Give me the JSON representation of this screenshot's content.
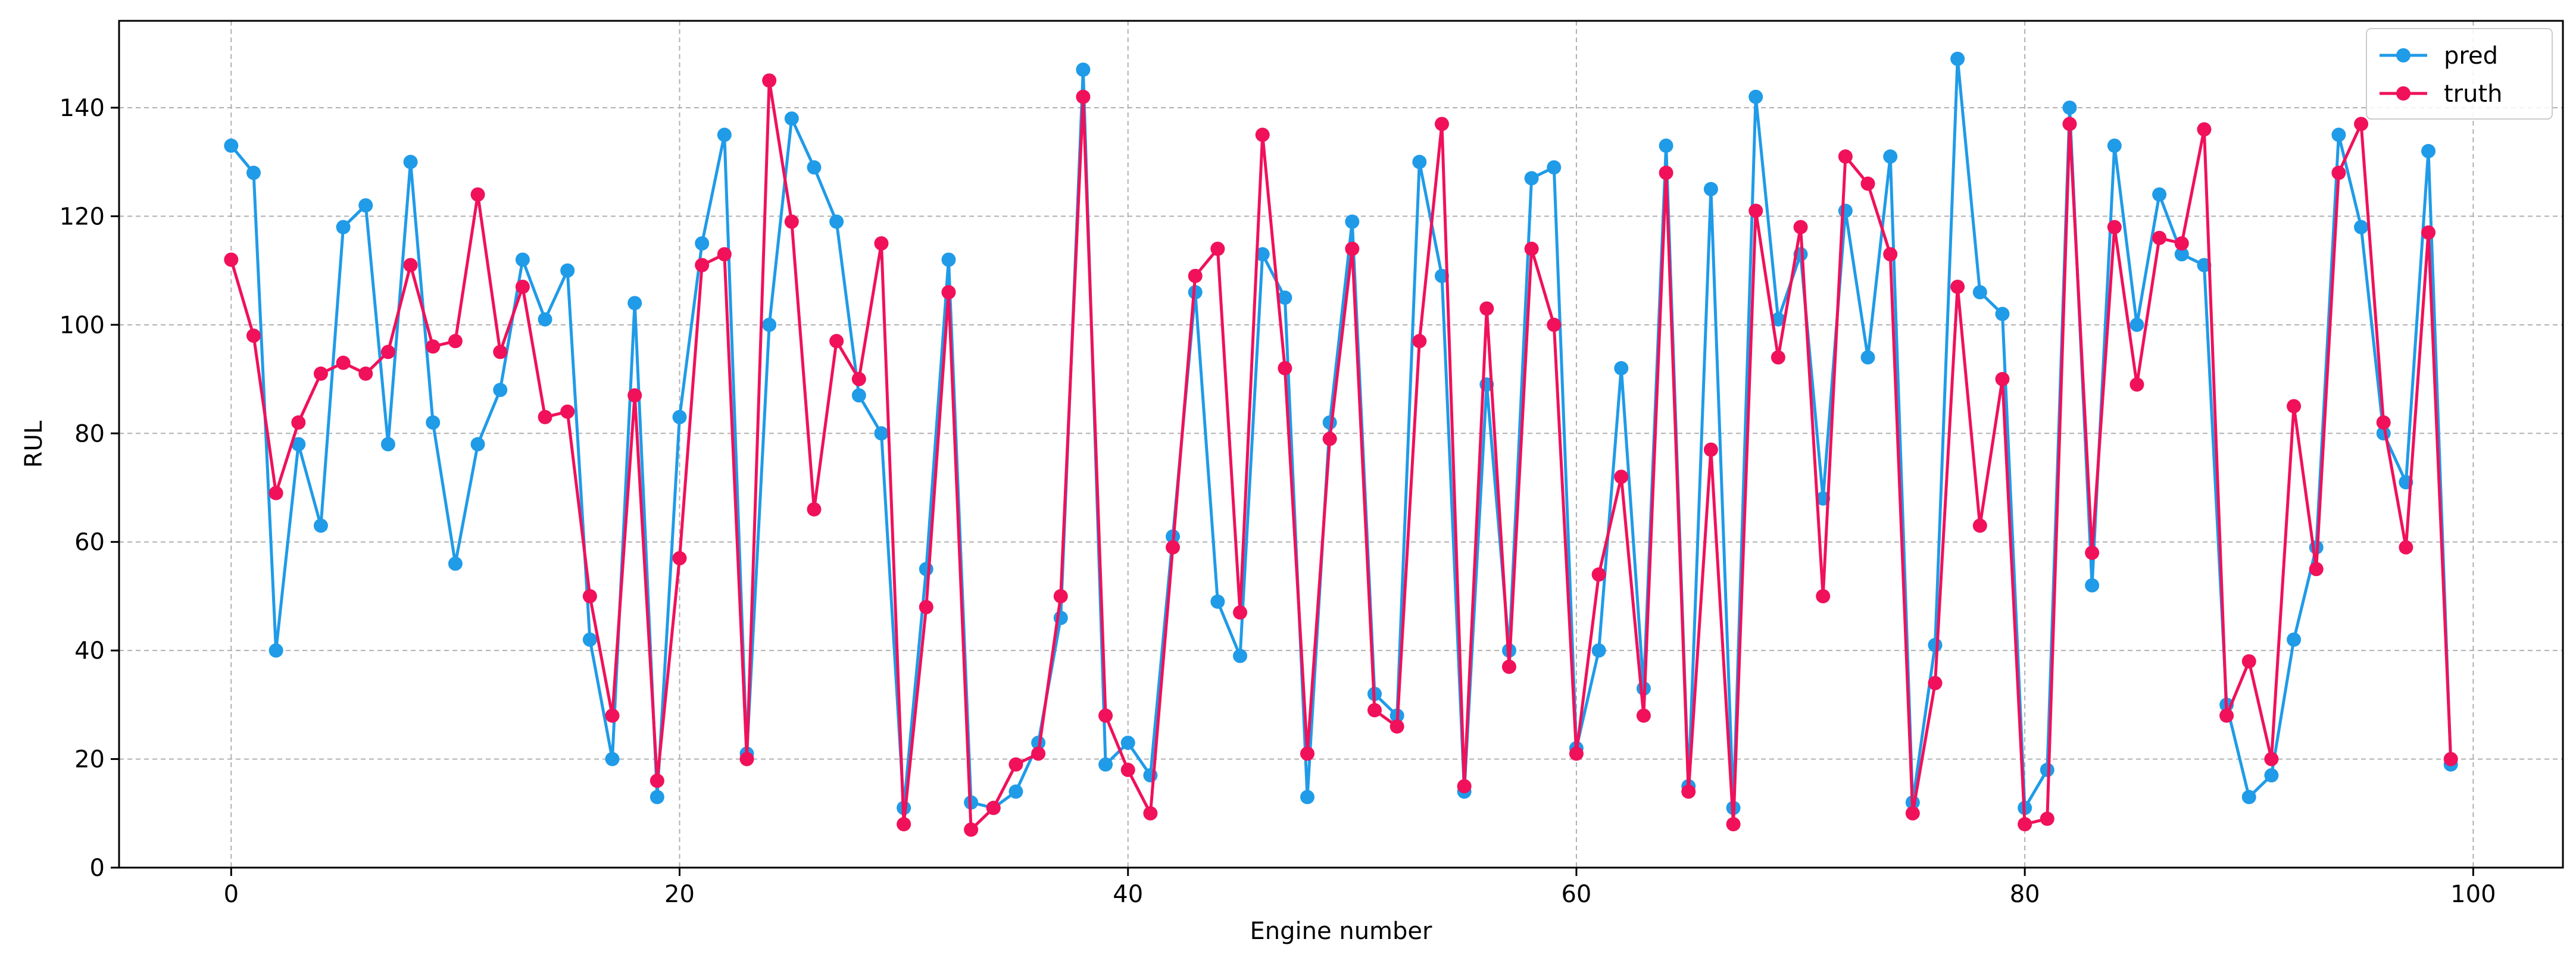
{
  "chart_data": {
    "type": "line",
    "xlabel": "Engine number",
    "ylabel": "RUL",
    "xlim": [
      -5,
      104
    ],
    "ylim": [
      0,
      156
    ],
    "x_ticks": [
      "0",
      "20",
      "40",
      "60",
      "80",
      "100"
    ],
    "y_ticks": [
      "0",
      "20",
      "40",
      "60",
      "80",
      "100",
      "120",
      "140"
    ],
    "grid": true,
    "legend_position": "top-right",
    "x": [
      0,
      1,
      2,
      3,
      4,
      5,
      6,
      7,
      8,
      9,
      10,
      11,
      12,
      13,
      14,
      15,
      16,
      17,
      18,
      19,
      20,
      21,
      22,
      23,
      24,
      25,
      26,
      27,
      28,
      29,
      30,
      31,
      32,
      33,
      34,
      35,
      36,
      37,
      38,
      39,
      40,
      41,
      42,
      43,
      44,
      45,
      46,
      47,
      48,
      49,
      50,
      51,
      52,
      53,
      54,
      55,
      56,
      57,
      58,
      59,
      60,
      61,
      62,
      63,
      64,
      65,
      66,
      67,
      68,
      69,
      70,
      71,
      72,
      73,
      74,
      75,
      76,
      77,
      78,
      79,
      80,
      81,
      82,
      83,
      84,
      85,
      86,
      87,
      88,
      89,
      90,
      91,
      92,
      93,
      94,
      95,
      96,
      97,
      98,
      99
    ],
    "series": [
      {
        "name": "pred",
        "color": "#1f9be8",
        "values": [
          133,
          128,
          40,
          78,
          63,
          118,
          122,
          78,
          130,
          82,
          56,
          78,
          88,
          112,
          101,
          110,
          42,
          20,
          104,
          13,
          83,
          115,
          135,
          21,
          100,
          138,
          129,
          119,
          87,
          80,
          11,
          55,
          112,
          12,
          11,
          14,
          23,
          46,
          147,
          19,
          23,
          17,
          61,
          106,
          49,
          39,
          113,
          105,
          13,
          82,
          119,
          32,
          28,
          130,
          109,
          14,
          89,
          40,
          127,
          129,
          22,
          40,
          92,
          33,
          133,
          15,
          125,
          11,
          142,
          101,
          113,
          68,
          121,
          94,
          131,
          12,
          41,
          149,
          106,
          102,
          11,
          18,
          140,
          52,
          133,
          100,
          124,
          113,
          111,
          30,
          13,
          17,
          42,
          59,
          135,
          118,
          80,
          71,
          132,
          19
        ]
      },
      {
        "name": "truth",
        "color": "#f0115a",
        "values": [
          112,
          98,
          69,
          82,
          91,
          93,
          91,
          95,
          111,
          96,
          97,
          124,
          95,
          107,
          83,
          84,
          50,
          28,
          87,
          16,
          57,
          111,
          113,
          20,
          145,
          119,
          66,
          97,
          90,
          115,
          8,
          48,
          106,
          7,
          11,
          19,
          21,
          50,
          142,
          28,
          18,
          10,
          59,
          109,
          114,
          47,
          135,
          92,
          21,
          79,
          114,
          29,
          26,
          97,
          137,
          15,
          103,
          37,
          114,
          100,
          21,
          54,
          72,
          28,
          128,
          14,
          77,
          8,
          121,
          94,
          118,
          50,
          131,
          126,
          113,
          10,
          34,
          107,
          63,
          90,
          8,
          9,
          137,
          58,
          118,
          89,
          116,
          115,
          136,
          28,
          38,
          20,
          85,
          55,
          128,
          137,
          82,
          59,
          117,
          20
        ]
      }
    ]
  }
}
